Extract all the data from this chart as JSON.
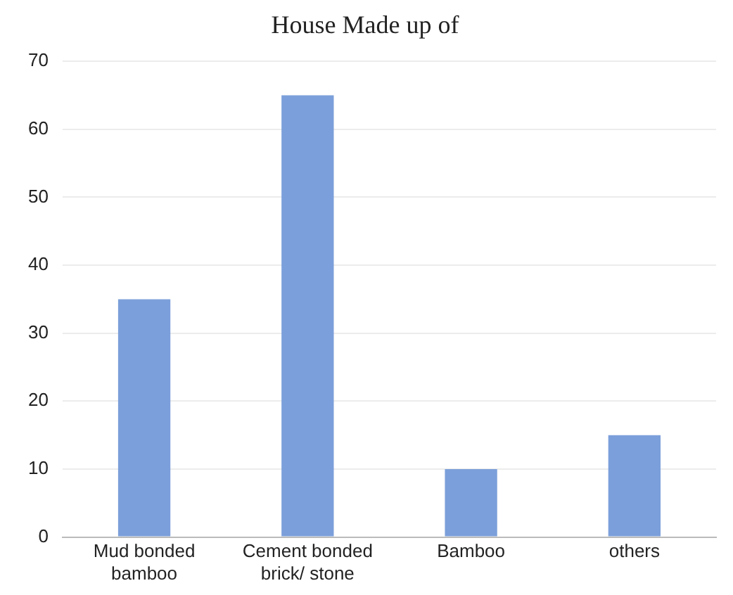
{
  "chart_data": {
    "type": "bar",
    "title": "House Made up of",
    "categories": [
      "Mud bonded bamboo",
      "Cement bonded brick/ stone",
      "Bamboo",
      "others"
    ],
    "values": [
      35,
      65,
      10,
      15
    ],
    "color": "#7b9fda",
    "ylim": [
      0,
      70
    ],
    "yticks": [
      0,
      10,
      20,
      30,
      40,
      50,
      60,
      70
    ],
    "grid": "y",
    "legend": false
  }
}
